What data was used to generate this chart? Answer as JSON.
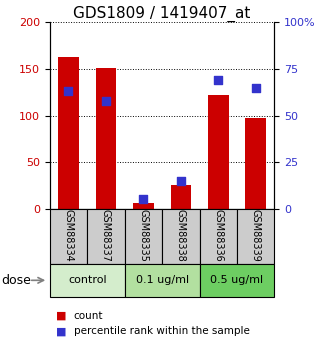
{
  "title": "GDS1809 / 1419407_at",
  "samples": [
    "GSM88334",
    "GSM88337",
    "GSM88335",
    "GSM88338",
    "GSM88336",
    "GSM88339"
  ],
  "count_values": [
    163,
    151,
    6,
    25,
    122,
    97
  ],
  "percentile_values": [
    63,
    58,
    5,
    15,
    69,
    65
  ],
  "groups": [
    {
      "label": "control",
      "samples": [
        0,
        1
      ],
      "color": "#d4edcc"
    },
    {
      "label": "0.1 ug/ml",
      "samples": [
        2,
        3
      ],
      "color": "#b2e0a0"
    },
    {
      "label": "0.5 ug/ml",
      "samples": [
        4,
        5
      ],
      "color": "#6dce62"
    }
  ],
  "left_yaxis": {
    "min": 0,
    "max": 200,
    "ticks": [
      0,
      50,
      100,
      150,
      200
    ],
    "color": "#cc0000"
  },
  "right_yaxis": {
    "min": 0,
    "max": 100,
    "ticks": [
      0,
      25,
      50,
      75,
      100
    ],
    "color": "#3333cc"
  },
  "bar_color": "#cc0000",
  "dot_color": "#3333cc",
  "bar_width": 0.55,
  "dot_size": 28,
  "sample_box_color": "#cccccc",
  "dose_label": "dose",
  "legend_count_label": "count",
  "legend_percentile_label": "percentile rank within the sample",
  "title_fontsize": 11,
  "tick_fontsize": 8,
  "sample_fontsize": 7,
  "dose_fontsize": 8,
  "legend_fontsize": 7.5
}
